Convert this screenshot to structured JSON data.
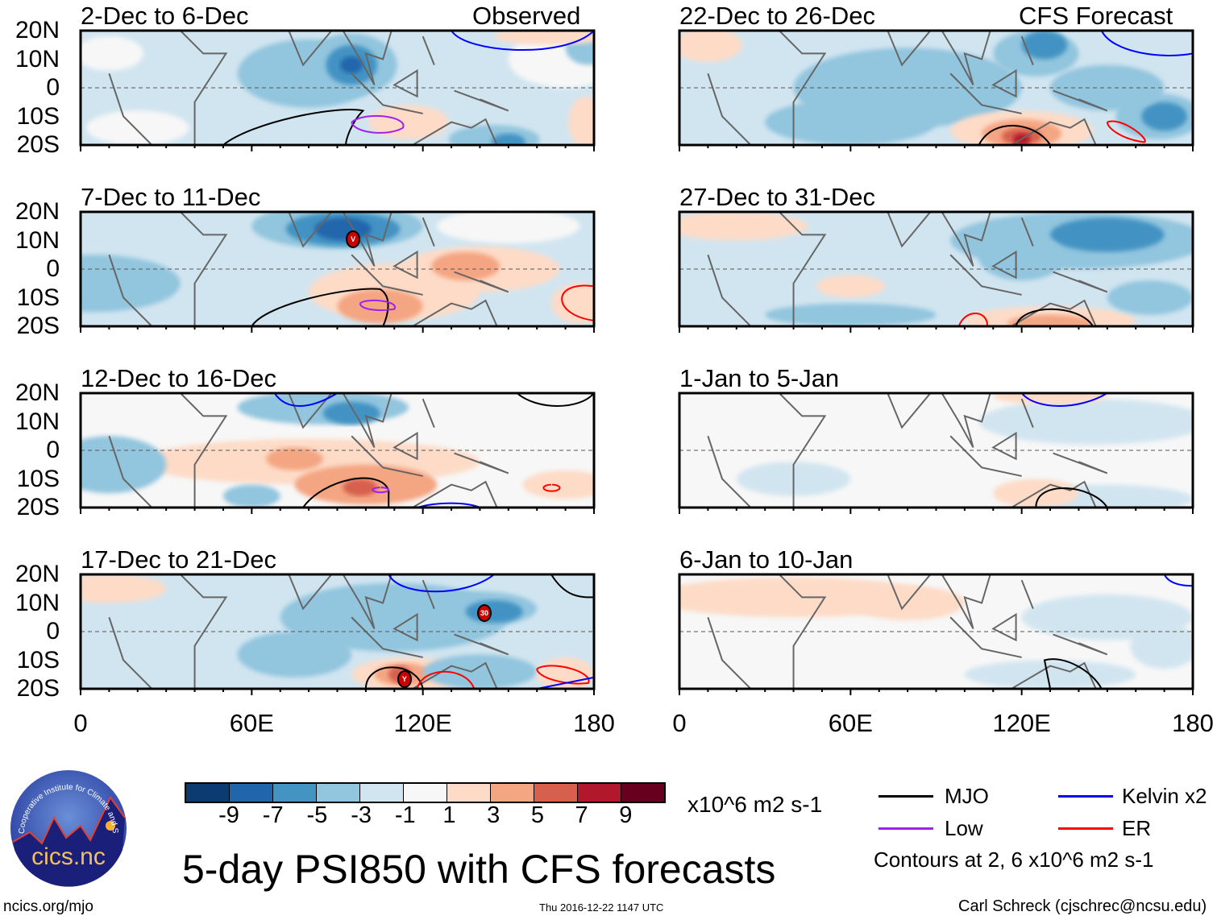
{
  "title": "5-day PSI850 with CFS forecasts",
  "source_label": "ncics.org/mjo",
  "timestamp": "Thu 2016-12-22 1147 UTC",
  "author": "Carl Schreck (cjschrec@ncsu.edu)",
  "logo_text": "cics.nc",
  "logo_arc_text": "Cooperative Institute for Climate and Satellites",
  "column_labels": {
    "left": "Observed",
    "right": "CFS Forecast"
  },
  "lat_labels": [
    "20N",
    "10N",
    "0",
    "10S",
    "20S"
  ],
  "lon_labels": [
    "0",
    "60E",
    "120E",
    "180"
  ],
  "panels": [
    {
      "title": "2-Dec to 6-Dec",
      "column": "Observed"
    },
    {
      "title": "7-Dec to 11-Dec",
      "column": "Observed",
      "marker": "V"
    },
    {
      "title": "12-Dec to 16-Dec",
      "column": "Observed"
    },
    {
      "title": "17-Dec to 21-Dec",
      "column": "Observed",
      "markers": [
        "30",
        "Y"
      ]
    },
    {
      "title": "22-Dec to 26-Dec",
      "column": "CFS Forecast"
    },
    {
      "title": "27-Dec to 31-Dec",
      "column": "CFS Forecast"
    },
    {
      "title": "1-Jan to 5-Jan",
      "column": "CFS Forecast"
    },
    {
      "title": "6-Jan to 10-Jan",
      "column": "CFS Forecast"
    }
  ],
  "colorbar": {
    "labels": [
      "-9",
      "-7",
      "-5",
      "-3",
      "-1",
      "1",
      "3",
      "5",
      "7",
      "9"
    ],
    "units": "x10^6 m2 s-1",
    "colors": [
      "#0b3b70",
      "#2166ac",
      "#4393c3",
      "#92c5de",
      "#d1e5f0",
      "#f7f7f7",
      "#fddbc7",
      "#f4a582",
      "#d6604d",
      "#b2182b",
      "#67001f"
    ]
  },
  "legend": {
    "items": [
      {
        "label": "MJO",
        "color": "#000000"
      },
      {
        "label": "Kelvin x2",
        "color": "#0000ff"
      },
      {
        "label": "Low",
        "color": "#a020f0"
      },
      {
        "label": "ER",
        "color": "#ff0000"
      }
    ],
    "note": "Contours at 2, 6 x10^6 m2 s-1"
  }
}
